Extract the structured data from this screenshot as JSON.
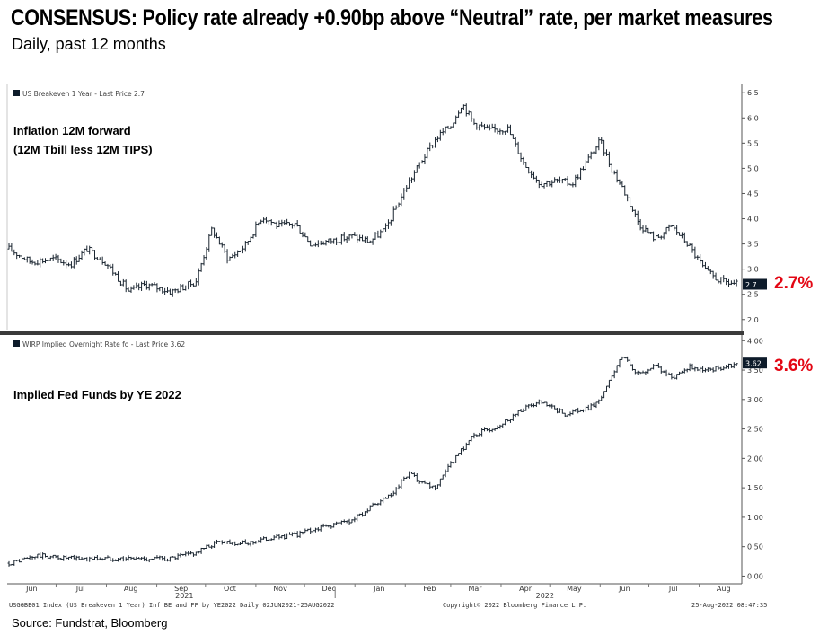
{
  "header": {
    "title": "CONSENSUS: Policy rate already +0.90bp above “Neutral” rate, per market measures",
    "subtitle": "Daily, past 12 months"
  },
  "footer": {
    "info_left": "USGGBE01 Index (US Breakeven 1 Year) Inf BE and FF by YE2022  Daily 02JUN2021-25AUG2022",
    "copyright": "Copyright© 2022 Bloomberg Finance L.P.",
    "timestamp": "25-Aug-2022 08:47:35",
    "source": "Source: Fundstrat, Bloomberg"
  },
  "colors": {
    "candle": "#1a2530",
    "highlight": "#e30613",
    "tag_bg": "#0d1b2a",
    "divider": "#3a3a3a"
  },
  "chart_data": [
    {
      "type": "line",
      "legend": "US Breakeven 1 Year - Last Price 2.7",
      "annotation_line1": "Inflation 12M forward",
      "annotation_line2": "(12M Tbill less 12M TIPS)",
      "last_value_tag": "2.7",
      "callout": "2.7%",
      "ylim": [
        1.8,
        6.7
      ],
      "yticks": [
        "2.0",
        "2.5",
        "3.0",
        "3.5",
        "4.0",
        "4.5",
        "5.0",
        "5.5",
        "6.0",
        "6.5"
      ],
      "x": [
        "2021-06-02",
        "2021-06-15",
        "2021-06-30",
        "2021-07-10",
        "2021-07-20",
        "2021-07-31",
        "2021-08-15",
        "2021-08-25",
        "2021-09-10",
        "2021-09-25",
        "2021-10-05",
        "2021-10-15",
        "2021-10-25",
        "2021-11-05",
        "2021-11-15",
        "2021-11-25",
        "2021-12-05",
        "2021-12-15",
        "2021-12-30",
        "2022-01-10",
        "2022-01-20",
        "2022-02-01",
        "2022-02-10",
        "2022-02-20",
        "2022-03-01",
        "2022-03-08",
        "2022-03-15",
        "2022-03-25",
        "2022-04-05",
        "2022-04-15",
        "2022-04-25",
        "2022-05-05",
        "2022-05-15",
        "2022-05-25",
        "2022-06-01",
        "2022-06-08",
        "2022-06-15",
        "2022-06-25",
        "2022-07-05",
        "2022-07-15",
        "2022-07-25",
        "2022-08-05",
        "2022-08-15",
        "2022-08-25"
      ],
      "y": [
        3.4,
        3.15,
        3.2,
        3.1,
        3.4,
        3.15,
        2.55,
        2.7,
        2.55,
        2.75,
        3.8,
        3.2,
        3.45,
        4.05,
        3.85,
        3.9,
        3.5,
        3.55,
        3.65,
        3.55,
        3.8,
        4.6,
        5.1,
        5.6,
        5.85,
        6.3,
        5.9,
        5.75,
        5.8,
        5.1,
        4.7,
        4.75,
        4.7,
        5.2,
        5.55,
        5.0,
        4.6,
        3.9,
        3.6,
        3.85,
        3.5,
        2.95,
        2.75,
        2.7
      ]
    },
    {
      "type": "line",
      "legend": "WIRP Implied Overnight Rate fo - Last Price 3.62",
      "annotation": "Implied Fed Funds by YE 2022",
      "last_value_tag": "3.62",
      "callout": "3.6%",
      "ylim": [
        -0.1,
        4.05
      ],
      "yticks": [
        "0.00",
        "0.50",
        "1.00",
        "1.50",
        "2.00",
        "2.50",
        "3.00",
        "3.50",
        "4.00"
      ],
      "x": [
        "2021-06-02",
        "2021-06-20",
        "2021-07-10",
        "2021-08-01",
        "2021-08-20",
        "2021-09-10",
        "2021-09-25",
        "2021-10-10",
        "2021-10-25",
        "2021-11-10",
        "2021-11-25",
        "2021-12-10",
        "2021-12-30",
        "2022-01-10",
        "2022-01-25",
        "2022-02-03",
        "2022-02-12",
        "2022-02-20",
        "2022-03-01",
        "2022-03-15",
        "2022-03-30",
        "2022-04-15",
        "2022-04-25",
        "2022-05-10",
        "2022-05-25",
        "2022-06-01",
        "2022-06-15",
        "2022-06-25",
        "2022-07-05",
        "2022-07-15",
        "2022-07-25",
        "2022-08-05",
        "2022-08-15",
        "2022-08-25"
      ],
      "y": [
        0.22,
        0.35,
        0.3,
        0.3,
        0.3,
        0.3,
        0.4,
        0.6,
        0.55,
        0.65,
        0.7,
        0.82,
        0.95,
        1.15,
        1.4,
        1.75,
        1.55,
        1.5,
        1.9,
        2.4,
        2.55,
        2.85,
        2.95,
        2.75,
        2.85,
        3.0,
        3.75,
        3.4,
        3.6,
        3.35,
        3.55,
        3.5,
        3.55,
        3.62
      ]
    }
  ],
  "x_axis": {
    "month_labels": [
      "Jun",
      "Jul",
      "Aug",
      "Sep",
      "Oct",
      "Nov",
      "Dec",
      "Jan",
      "Feb",
      "Mar",
      "Apr",
      "May",
      "Jun",
      "Jul",
      "Aug"
    ],
    "year_labels": [
      "2021",
      "2022"
    ]
  }
}
